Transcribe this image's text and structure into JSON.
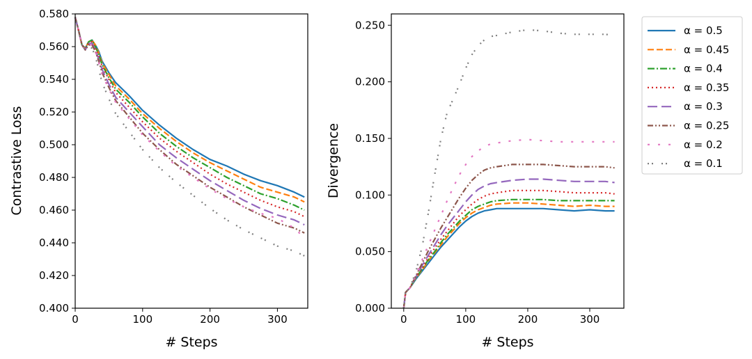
{
  "chart_data": [
    {
      "type": "line",
      "xlabel": "# Steps",
      "ylabel": "Contrastive Loss",
      "xlim": [
        0,
        345
      ],
      "ylim": [
        0.4,
        0.58
      ],
      "xticks": [
        "0",
        "100",
        "200",
        "300"
      ],
      "yticks": [
        "0.400",
        "0.420",
        "0.440",
        "0.460",
        "0.480",
        "0.500",
        "0.520",
        "0.540",
        "0.560",
        "0.580"
      ],
      "series": [
        {
          "name": "α = 0.5",
          "x": [
            0,
            5,
            10,
            15,
            20,
            25,
            30,
            35,
            40,
            50,
            60,
            80,
            100,
            125,
            150,
            175,
            200,
            225,
            250,
            275,
            300,
            325,
            340
          ],
          "values": [
            0.578,
            0.57,
            0.561,
            0.559,
            0.563,
            0.564,
            0.561,
            0.557,
            0.551,
            0.544,
            0.538,
            0.53,
            0.521,
            0.512,
            0.504,
            0.497,
            0.491,
            0.487,
            0.482,
            0.478,
            0.475,
            0.471,
            0.468
          ]
        },
        {
          "name": "α = 0.45",
          "x": [
            0,
            5,
            10,
            15,
            20,
            25,
            30,
            35,
            40,
            50,
            60,
            80,
            100,
            125,
            150,
            175,
            200,
            225,
            250,
            275,
            300,
            325,
            340
          ],
          "values": [
            0.578,
            0.57,
            0.561,
            0.559,
            0.563,
            0.564,
            0.561,
            0.556,
            0.55,
            0.543,
            0.536,
            0.528,
            0.519,
            0.51,
            0.502,
            0.495,
            0.489,
            0.484,
            0.479,
            0.474,
            0.471,
            0.468,
            0.465
          ]
        },
        {
          "name": "α = 0.4",
          "x": [
            0,
            5,
            10,
            15,
            20,
            25,
            30,
            35,
            40,
            50,
            60,
            80,
            100,
            125,
            150,
            175,
            200,
            225,
            250,
            275,
            300,
            325,
            340
          ],
          "values": [
            0.578,
            0.57,
            0.561,
            0.559,
            0.563,
            0.564,
            0.56,
            0.555,
            0.549,
            0.541,
            0.534,
            0.526,
            0.517,
            0.507,
            0.499,
            0.492,
            0.486,
            0.48,
            0.475,
            0.47,
            0.467,
            0.463,
            0.46
          ]
        },
        {
          "name": "α = 0.35",
          "x": [
            0,
            5,
            10,
            15,
            20,
            25,
            30,
            35,
            40,
            50,
            60,
            80,
            100,
            125,
            150,
            175,
            200,
            225,
            250,
            275,
            300,
            325,
            340
          ],
          "values": [
            0.578,
            0.57,
            0.561,
            0.559,
            0.562,
            0.563,
            0.559,
            0.554,
            0.548,
            0.54,
            0.532,
            0.523,
            0.514,
            0.504,
            0.496,
            0.489,
            0.482,
            0.476,
            0.471,
            0.466,
            0.462,
            0.459,
            0.456
          ]
        },
        {
          "name": "α = 0.3",
          "x": [
            0,
            5,
            10,
            15,
            20,
            25,
            30,
            35,
            40,
            50,
            60,
            80,
            100,
            125,
            150,
            175,
            200,
            225,
            250,
            275,
            300,
            325,
            340
          ],
          "values": [
            0.578,
            0.57,
            0.561,
            0.558,
            0.562,
            0.562,
            0.558,
            0.552,
            0.546,
            0.537,
            0.529,
            0.52,
            0.511,
            0.5,
            0.492,
            0.485,
            0.478,
            0.472,
            0.466,
            0.461,
            0.457,
            0.454,
            0.451
          ]
        },
        {
          "name": "α = 0.25",
          "x": [
            0,
            5,
            10,
            15,
            20,
            25,
            30,
            35,
            40,
            50,
            60,
            80,
            100,
            125,
            150,
            175,
            200,
            225,
            250,
            275,
            300,
            325,
            340
          ],
          "values": [
            0.578,
            0.57,
            0.561,
            0.558,
            0.561,
            0.561,
            0.557,
            0.551,
            0.544,
            0.535,
            0.527,
            0.517,
            0.507,
            0.497,
            0.488,
            0.481,
            0.474,
            0.468,
            0.462,
            0.457,
            0.452,
            0.449,
            0.446
          ]
        },
        {
          "name": "α = 0.2",
          "x": [
            0,
            5,
            10,
            15,
            20,
            25,
            30,
            35,
            40,
            50,
            60,
            80,
            100,
            125,
            150,
            175,
            200,
            225,
            250,
            275,
            300,
            325,
            340
          ],
          "values": [
            0.578,
            0.57,
            0.561,
            0.558,
            0.561,
            0.561,
            0.557,
            0.55,
            0.543,
            0.534,
            0.526,
            0.516,
            0.506,
            0.496,
            0.487,
            0.48,
            0.473,
            0.467,
            0.462,
            0.458,
            0.455,
            0.449,
            0.443
          ]
        },
        {
          "name": "α = 0.1",
          "x": [
            0,
            5,
            10,
            15,
            20,
            25,
            30,
            35,
            40,
            50,
            60,
            80,
            100,
            125,
            150,
            175,
            200,
            225,
            250,
            275,
            300,
            325,
            340
          ],
          "values": [
            0.578,
            0.57,
            0.561,
            0.558,
            0.56,
            0.559,
            0.554,
            0.546,
            0.538,
            0.528,
            0.519,
            0.508,
            0.497,
            0.486,
            0.477,
            0.469,
            0.461,
            0.454,
            0.448,
            0.443,
            0.438,
            0.435,
            0.432
          ]
        }
      ]
    },
    {
      "type": "line",
      "xlabel": "# Steps",
      "ylabel": "Divergence",
      "xlim": [
        -20,
        355
      ],
      "ylim": [
        0.0,
        0.26
      ],
      "xticks": [
        "0",
        "100",
        "200",
        "300"
      ],
      "yticks": [
        "0.000",
        "0.050",
        "0.100",
        "0.150",
        "0.200",
        "0.250"
      ],
      "series": [
        {
          "name": "α = 0.5",
          "x": [
            0,
            3,
            10,
            20,
            30,
            40,
            50,
            60,
            70,
            80,
            90,
            100,
            110,
            120,
            130,
            140,
            150,
            175,
            200,
            225,
            250,
            275,
            300,
            325,
            340
          ],
          "values": [
            0.0,
            0.014,
            0.018,
            0.026,
            0.033,
            0.04,
            0.047,
            0.054,
            0.06,
            0.066,
            0.072,
            0.077,
            0.081,
            0.084,
            0.086,
            0.087,
            0.088,
            0.088,
            0.088,
            0.088,
            0.087,
            0.086,
            0.087,
            0.086,
            0.086
          ]
        },
        {
          "name": "α = 0.45",
          "x": [
            0,
            3,
            10,
            20,
            30,
            40,
            50,
            60,
            70,
            80,
            90,
            100,
            110,
            120,
            130,
            140,
            150,
            175,
            200,
            225,
            250,
            275,
            300,
            325,
            340
          ],
          "values": [
            0.0,
            0.014,
            0.018,
            0.027,
            0.034,
            0.042,
            0.049,
            0.056,
            0.063,
            0.069,
            0.075,
            0.08,
            0.084,
            0.087,
            0.089,
            0.091,
            0.092,
            0.093,
            0.093,
            0.092,
            0.091,
            0.09,
            0.091,
            0.09,
            0.09
          ]
        },
        {
          "name": "α = 0.4",
          "x": [
            0,
            3,
            10,
            20,
            30,
            40,
            50,
            60,
            70,
            80,
            90,
            100,
            110,
            120,
            130,
            140,
            150,
            175,
            200,
            225,
            250,
            275,
            300,
            325,
            340
          ],
          "values": [
            0.0,
            0.014,
            0.018,
            0.027,
            0.035,
            0.043,
            0.05,
            0.058,
            0.065,
            0.071,
            0.077,
            0.082,
            0.087,
            0.09,
            0.092,
            0.094,
            0.095,
            0.096,
            0.096,
            0.096,
            0.095,
            0.095,
            0.095,
            0.095,
            0.095
          ]
        },
        {
          "name": "α = 0.35",
          "x": [
            0,
            3,
            10,
            20,
            30,
            40,
            50,
            60,
            70,
            80,
            90,
            100,
            110,
            120,
            130,
            140,
            150,
            175,
            200,
            225,
            250,
            275,
            300,
            325,
            340
          ],
          "values": [
            0.0,
            0.014,
            0.018,
            0.028,
            0.036,
            0.045,
            0.053,
            0.061,
            0.068,
            0.075,
            0.082,
            0.087,
            0.092,
            0.096,
            0.099,
            0.101,
            0.102,
            0.104,
            0.104,
            0.104,
            0.103,
            0.102,
            0.102,
            0.102,
            0.101
          ]
        },
        {
          "name": "α = 0.3",
          "x": [
            0,
            3,
            10,
            20,
            30,
            40,
            50,
            60,
            70,
            80,
            90,
            100,
            110,
            120,
            130,
            140,
            150,
            175,
            200,
            225,
            250,
            275,
            300,
            325,
            340
          ],
          "values": [
            0.0,
            0.014,
            0.018,
            0.028,
            0.038,
            0.047,
            0.056,
            0.065,
            0.073,
            0.08,
            0.087,
            0.094,
            0.1,
            0.105,
            0.108,
            0.11,
            0.111,
            0.113,
            0.114,
            0.114,
            0.113,
            0.112,
            0.112,
            0.112,
            0.111
          ]
        },
        {
          "name": "α = 0.25",
          "x": [
            0,
            3,
            10,
            20,
            30,
            40,
            50,
            60,
            70,
            80,
            90,
            100,
            110,
            120,
            130,
            140,
            150,
            175,
            200,
            225,
            250,
            275,
            300,
            325,
            340
          ],
          "values": [
            0.0,
            0.014,
            0.018,
            0.029,
            0.04,
            0.051,
            0.061,
            0.071,
            0.08,
            0.089,
            0.098,
            0.106,
            0.113,
            0.118,
            0.122,
            0.124,
            0.125,
            0.127,
            0.127,
            0.127,
            0.126,
            0.125,
            0.125,
            0.125,
            0.124
          ]
        },
        {
          "name": "α = 0.2",
          "x": [
            0,
            3,
            10,
            20,
            30,
            40,
            50,
            60,
            70,
            80,
            90,
            100,
            110,
            120,
            130,
            140,
            150,
            175,
            200,
            225,
            250,
            275,
            300,
            325,
            340
          ],
          "values": [
            0.0,
            0.014,
            0.018,
            0.03,
            0.043,
            0.056,
            0.069,
            0.082,
            0.095,
            0.107,
            0.118,
            0.127,
            0.134,
            0.139,
            0.143,
            0.145,
            0.146,
            0.148,
            0.149,
            0.148,
            0.147,
            0.147,
            0.147,
            0.147,
            0.147
          ]
        },
        {
          "name": "α = 0.1",
          "x": [
            0,
            3,
            10,
            20,
            30,
            40,
            50,
            60,
            70,
            80,
            90,
            100,
            110,
            120,
            130,
            140,
            150,
            175,
            200,
            225,
            250,
            275,
            300,
            325,
            340
          ],
          "values": [
            0.0,
            0.014,
            0.018,
            0.033,
            0.055,
            0.085,
            0.118,
            0.15,
            0.173,
            0.185,
            0.198,
            0.212,
            0.224,
            0.232,
            0.237,
            0.24,
            0.241,
            0.244,
            0.246,
            0.245,
            0.243,
            0.242,
            0.242,
            0.242,
            0.241
          ]
        }
      ]
    }
  ],
  "colors": [
    "#1f77b4",
    "#ff7f0e",
    "#2ca02c",
    "#d62728",
    "#9467bd",
    "#8c564b",
    "#e377c2",
    "#7f7f7f"
  ],
  "dashes": [
    "",
    "9 4",
    "10 3 2 3",
    "2 4",
    "14 6",
    "8 3 2 3 2 3",
    "3 12",
    "2 4 2 12"
  ],
  "legend": {
    "position": "top-right",
    "entries": [
      "α = 0.5",
      "α = 0.45",
      "α = 0.4",
      "α = 0.35",
      "α = 0.3",
      "α = 0.25",
      "α = 0.2",
      "α = 0.1"
    ]
  }
}
